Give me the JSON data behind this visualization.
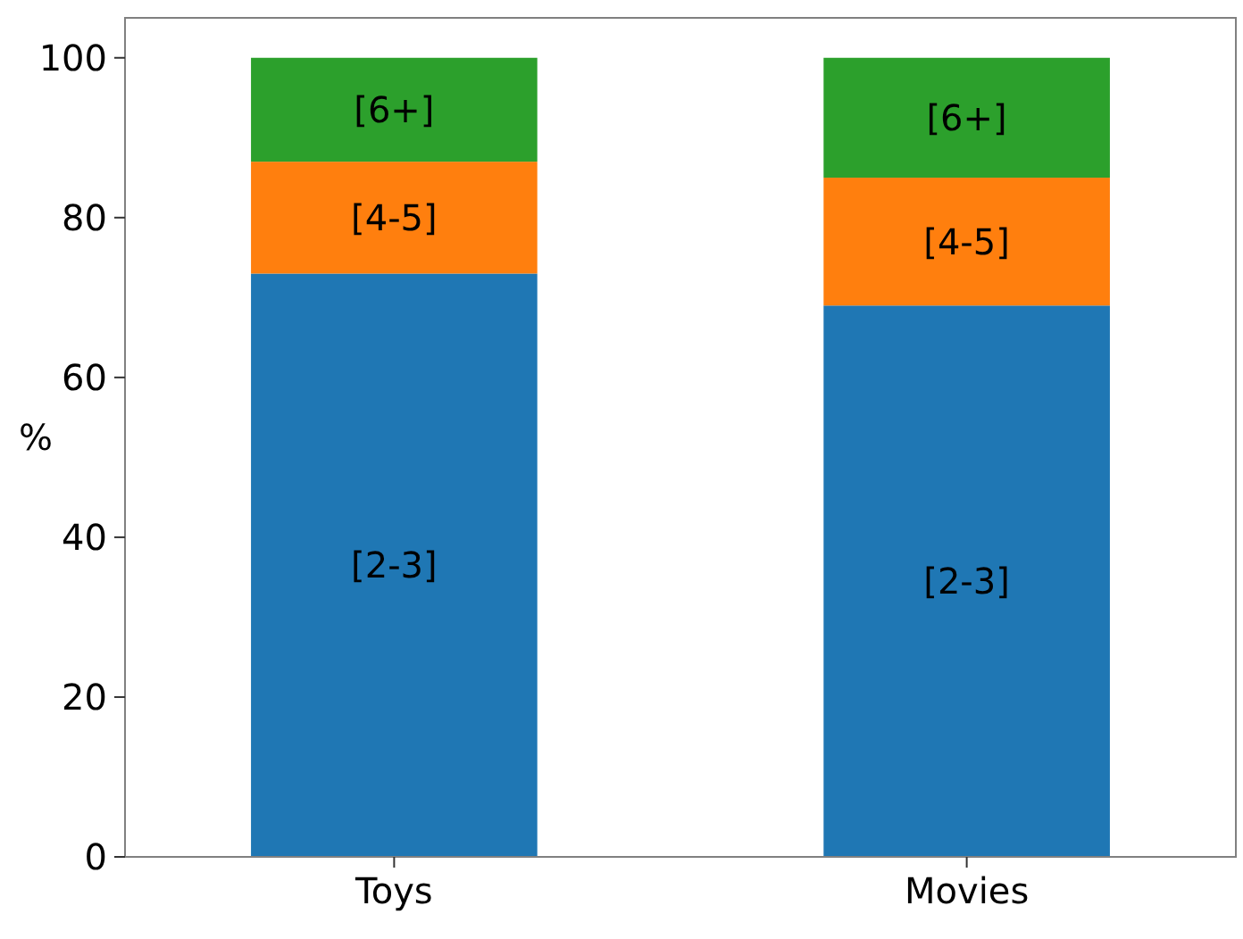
{
  "chart_data": {
    "type": "bar",
    "stacked": true,
    "categories": [
      "Toys",
      "Movies"
    ],
    "ylabel": "%",
    "ylim": [
      0,
      105
    ],
    "yticks": [
      0,
      20,
      40,
      60,
      80,
      100
    ],
    "grid": false,
    "series": [
      {
        "name": "[2-3]",
        "color": "#1f77b4",
        "values": [
          73,
          69
        ]
      },
      {
        "name": "[4-5]",
        "color": "#ff7f0e",
        "values": [
          14,
          16
        ]
      },
      {
        "name": "[6+]",
        "color": "#2ca02c",
        "values": [
          13,
          15
        ]
      }
    ]
  }
}
